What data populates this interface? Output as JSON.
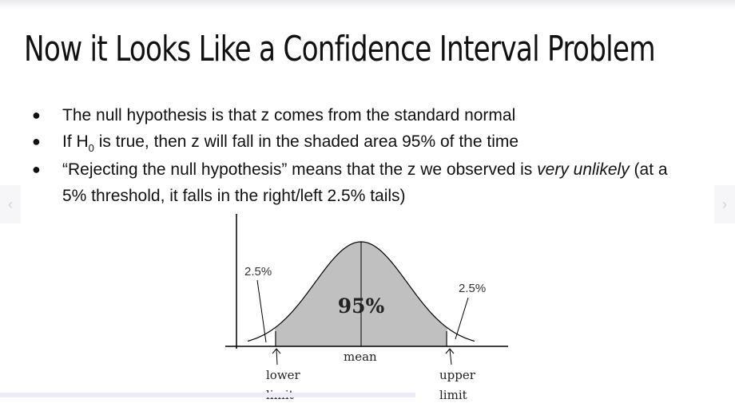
{
  "slide": {
    "title": "Now it Looks Like a Confidence Interval Problem",
    "bullets": [
      {
        "text": "The null hypothesis is that z comes from the standard normal"
      },
      {
        "pre": "If H",
        "sub": "0",
        "post": " is true, then z will fall in the shaded area 95% of the time"
      },
      {
        "pre": "“Rejecting the null hypothesis” means that the z we observed is ",
        "em": "very unlikely",
        "post": " (at a 5% threshold, it falls in the right/left 2.5% tails)"
      }
    ]
  },
  "nav": {
    "prev_icon": "chevron-left-icon",
    "next_icon": "chevron-right-icon"
  },
  "figure": {
    "center_label": "95%",
    "left_tail_label": "2.5%",
    "right_tail_label": "2.5%",
    "mean_label": "mean",
    "lower_label_1": "lower",
    "lower_label_2": "limit",
    "upper_label_1": "upper",
    "upper_label_2": "limit",
    "shade_color": "#c0c0c0"
  }
}
